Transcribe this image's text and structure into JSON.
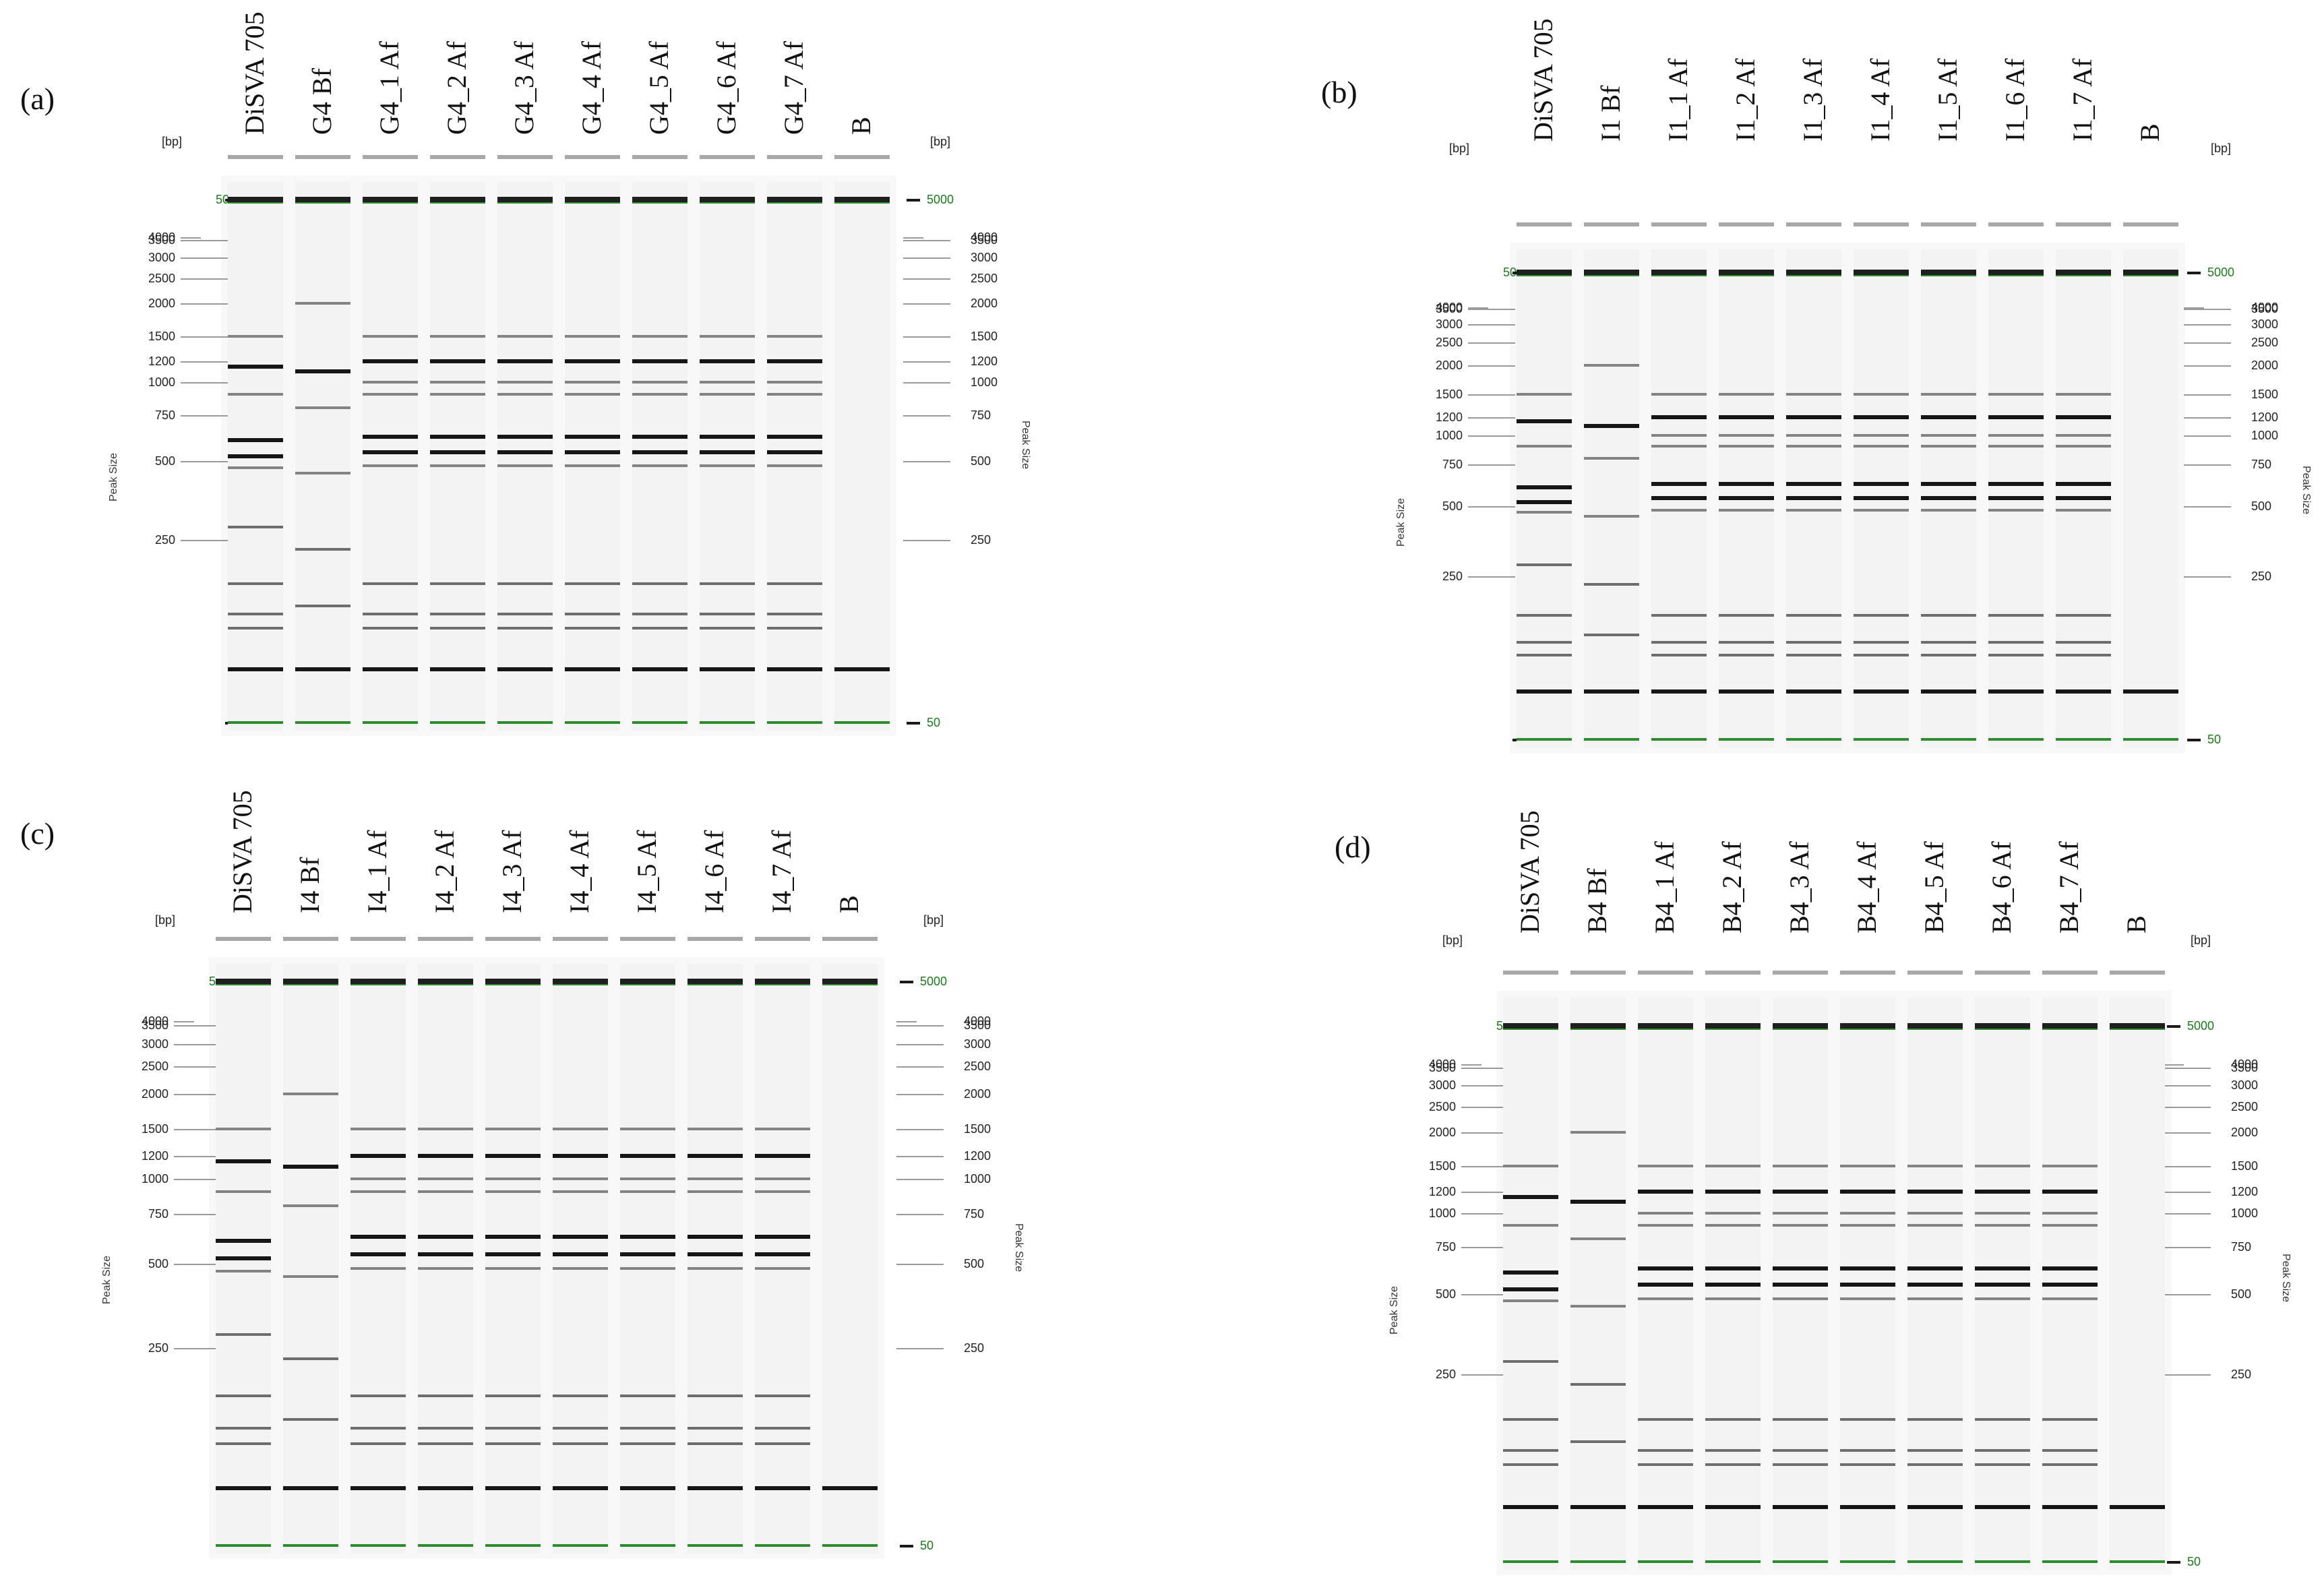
{
  "figure": {
    "panels": [
      {
        "id": "a",
        "label": "(a)",
        "axis_unit": "[bp]",
        "axis_title": "Peak Size",
        "lanes": [
          "DiSVA 705",
          "G4 Bf",
          "G4_1 Af",
          "G4_2 Af",
          "G4_3 Af",
          "G4_4 Af",
          "G4_5 Af",
          "G4_6 Af",
          "G4_7 Af",
          "B"
        ],
        "ladder_left": [
          "4000",
          "3500",
          "3000",
          "2500",
          "2000",
          "1500",
          "1200",
          "1000",
          "750",
          "500",
          "250"
        ],
        "ladder_right": [
          "4000",
          "3500",
          "3000",
          "2500",
          "2000",
          "1500",
          "1200",
          "1000",
          "750",
          "500",
          "250"
        ],
        "marker_upper": "5000",
        "marker_lower": "50"
      },
      {
        "id": "b",
        "label": "(b)",
        "axis_unit": "[bp]",
        "axis_title": "Peak Size",
        "lanes": [
          "DiSVA 705",
          "I1 Bf",
          "I1_1 Af",
          "I1_2 Af",
          "I1_3 Af",
          "I1_4 Af",
          "I1_5 Af",
          "I1_6 Af",
          "I1_7 Af",
          "B"
        ],
        "ladder_left": [
          "4000",
          "3500",
          "3000",
          "2500",
          "2000",
          "1500",
          "1200",
          "1000",
          "750",
          "500",
          "250"
        ],
        "ladder_right": [
          "4000",
          "3500",
          "3000",
          "2500",
          "2000",
          "1500",
          "1200",
          "1000",
          "750",
          "500",
          "250"
        ],
        "marker_upper": "5000",
        "marker_lower": "50"
      },
      {
        "id": "c",
        "label": "(c)",
        "axis_unit": "[bp]",
        "axis_title": "Peak Size",
        "lanes": [
          "DiSVA 705",
          "I4 Bf",
          "I4_1 Af",
          "I4_2 Af",
          "I4_3 Af",
          "I4_4 Af",
          "I4_5 Af",
          "I4_6 Af",
          "I4_7 Af",
          "B"
        ],
        "ladder_left": [
          "4000",
          "3500",
          "3000",
          "2500",
          "2000",
          "1500",
          "1200",
          "1000",
          "750",
          "500",
          "250"
        ],
        "ladder_right": [
          "4000",
          "3500",
          "3000",
          "2500",
          "2000",
          "1500",
          "1200",
          "1000",
          "750",
          "500",
          "250"
        ],
        "marker_upper": "5000",
        "marker_lower": "50"
      },
      {
        "id": "d",
        "label": "(d)",
        "axis_unit": "[bp]",
        "axis_title": "Peak Size",
        "lanes": [
          "DiSVA 705",
          "B4 Bf",
          "B4_1 Af",
          "B4_2 Af",
          "B4_3 Af",
          "B4_4 Af",
          "B4_5 Af",
          "B4_6 Af",
          "B4_7 Af",
          "B"
        ],
        "ladder_left": [
          "4000",
          "3500",
          "3000",
          "2500",
          "2000",
          "1500",
          "1200",
          "1000",
          "750",
          "500",
          "250"
        ],
        "ladder_right": [
          "4000",
          "3500",
          "3000",
          "2500",
          "2000",
          "1500",
          "1200",
          "1000",
          "750",
          "500",
          "250"
        ],
        "marker_upper": "5000",
        "marker_lower": "50"
      }
    ],
    "band_patterns_bp": {
      "strain": [
        1500,
        1150,
        900,
        600,
        520,
        470,
        280,
        170,
        130,
        115,
        80
      ],
      "before": [
        2000,
        1100,
        800,
        450,
        230,
        140,
        80
      ],
      "after": [
        1500,
        1200,
        1000,
        900,
        620,
        540,
        480,
        170,
        130,
        115,
        80
      ],
      "blank": [
        80
      ]
    },
    "colors": {
      "marker_green": "#2e8b2e",
      "band_dark": "#111111",
      "gel_background": "#f3f3f3"
    }
  }
}
